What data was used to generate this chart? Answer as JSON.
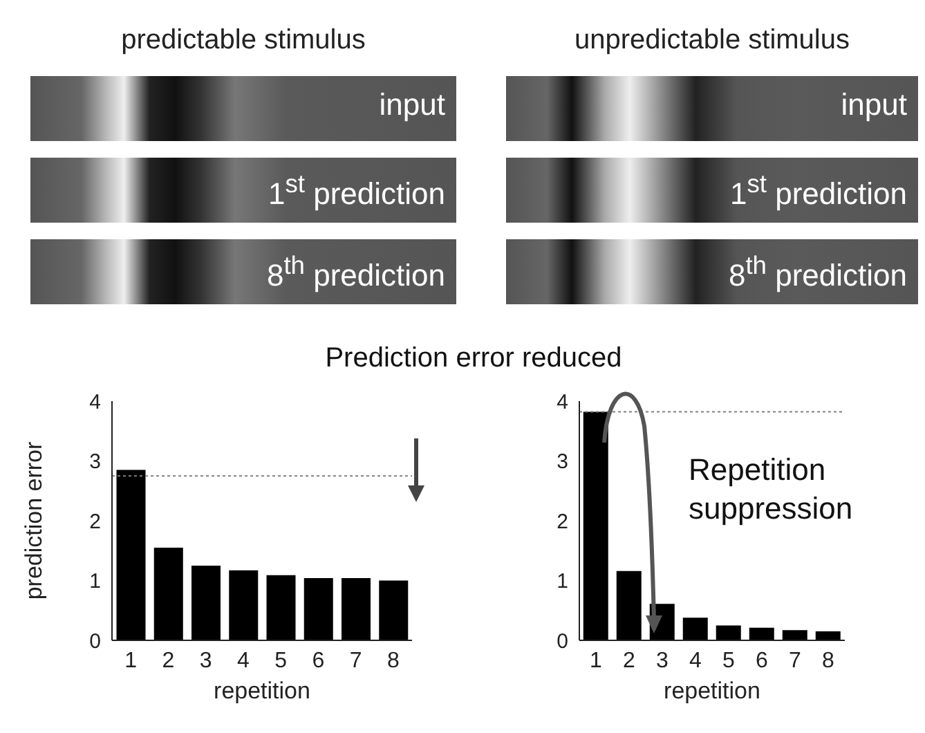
{
  "chart_data": [
    {
      "type": "bar",
      "categories": [
        "1",
        "2",
        "3",
        "4",
        "5",
        "6",
        "7",
        "8"
      ],
      "values": [
        2.85,
        1.55,
        1.25,
        1.17,
        1.09,
        1.04,
        1.04,
        1.0
      ],
      "color": "#000000",
      "ylim": [
        0,
        4
      ],
      "yticks": [
        0,
        1,
        2,
        3,
        4
      ],
      "xlabel": "repetition",
      "ylabel": "prediction error",
      "grid": false,
      "ref_lines": [
        {
          "axis": "y",
          "value": 2.75,
          "color": "#808080",
          "line_style": "dotted"
        }
      ],
      "annotations": [
        "predictable stimulus",
        "input",
        "1$^{st}$ prediction",
        "8$^{th}$ prediction",
        "Prediction error reduced"
      ]
    },
    {
      "type": "bar",
      "categories": [
        "1",
        "2",
        "3",
        "4",
        "5",
        "6",
        "7",
        "8"
      ],
      "values": [
        3.82,
        1.16,
        0.61,
        0.38,
        0.25,
        0.21,
        0.17,
        0.15
      ],
      "color": "#000000",
      "ylim": [
        0,
        4
      ],
      "yticks": [
        0,
        1,
        2,
        3,
        4
      ],
      "xlabel": "repetition",
      "grid": false,
      "ref_lines": [
        {
          "axis": "y",
          "value": 3.82,
          "color": "#808080",
          "line_style": "dotted"
        }
      ],
      "annotations": [
        "unpredictable stimulus",
        "input",
        "1$^{st}$ prediction",
        "8$^{th}$ prediction",
        "Repetition suppression"
      ]
    }
  ]
}
